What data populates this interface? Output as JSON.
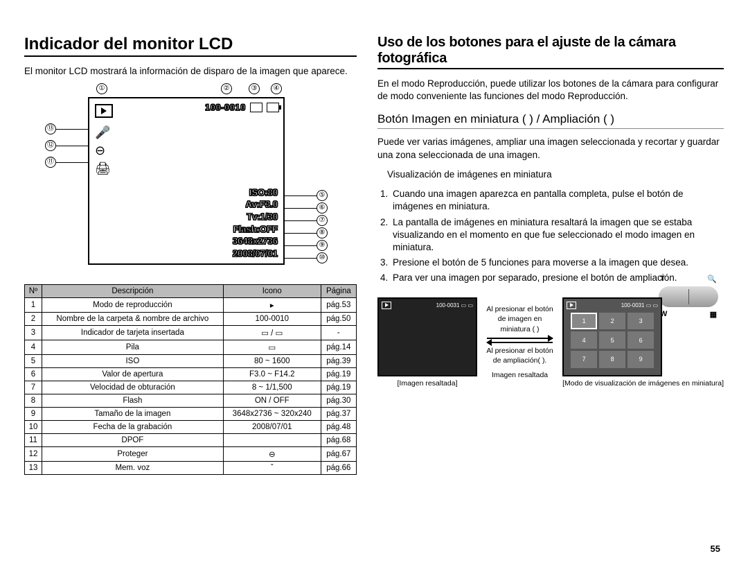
{
  "page_number": "55",
  "left": {
    "title": "Indicador del monitor LCD",
    "intro": "El monitor LCD mostrará la información de disparo de la imagen que aparece.",
    "lcd": {
      "file_label": "100-0010",
      "info_lines": [
        "ISO:80",
        "Av:F3.0",
        "Tv:1/30",
        "Flash:OFF",
        "3648x2736",
        "2008/07/01"
      ]
    },
    "callouts_top": [
      "①",
      "②",
      "③",
      "④"
    ],
    "callouts_right": [
      "⑤",
      "⑥",
      "⑦",
      "⑧",
      "⑨",
      "⑩"
    ],
    "callouts_left": [
      "⑬",
      "⑫",
      "⑪"
    ],
    "table": {
      "headers": [
        "Nº",
        "Descripción",
        "Icono",
        "Página"
      ],
      "rows": [
        [
          "1",
          "Modo de reproducción",
          "▸",
          "pág.53"
        ],
        [
          "2",
          "Nombre de la carpeta & nombre de archivo",
          "100-0010",
          "pág.50"
        ],
        [
          "3",
          "Indicador de tarjeta insertada",
          "▭ / ▭",
          "-"
        ],
        [
          "4",
          "Pila",
          "▭",
          "pág.14"
        ],
        [
          "5",
          "ISO",
          "80 ~ 1600",
          "pág.39"
        ],
        [
          "6",
          "Valor de apertura",
          "F3.0 ~ F14.2",
          "pág.19"
        ],
        [
          "7",
          "Velocidad de obturación",
          "8 ~ 1/1,500",
          "pág.19"
        ],
        [
          "8",
          "Flash",
          "ON / OFF",
          "pág.30"
        ],
        [
          "9",
          "Tamaño de la imagen",
          "3648x2736 ~ 320x240",
          "pág.37"
        ],
        [
          "10",
          "Fecha de la grabación",
          "2008/07/01",
          "pág.48"
        ],
        [
          "11",
          "DPOF",
          "",
          "pág.68"
        ],
        [
          "12",
          "Proteger",
          "⊖",
          "pág.67"
        ],
        [
          "13",
          "Mem. voz",
          "ˇ",
          "pág.66"
        ]
      ]
    }
  },
  "right": {
    "title": "Uso de los botones para el ajuste de la cámara fotográfica",
    "intro": "En el modo Reproducción, puede utilizar los botones de la cámara para configurar de modo conveniente las funciones del modo Reproducción.",
    "subhead": "Botón Imagen en miniatura (    ) / Ampliación (    )",
    "p1": "Puede ver varias imágenes, ampliar una imagen seleccionada y recortar y guardar una zona seleccionada de una imagen.",
    "section_label": "Visualización de imágenes en miniatura",
    "steps": [
      "Cuando una imagen aparezca en pantalla completa, pulse el botón de imágenes en miniatura.",
      "La pantalla de imágenes en miniatura resaltará la imagen que se estaba visualizando en el momento en que fue seleccionado el modo imagen en miniatura.",
      "Presione el botón de 5 funciones para moverse a la imagen que desea.",
      "Para ver una imagen por separado, presione el botón de ampliación."
    ],
    "zoom": {
      "t": "T",
      "w": "W",
      "mag": "🔍",
      "grid": "▦"
    },
    "diagram": {
      "hdr_label": "100-0031",
      "arrow_top": "Al presionar el botón de imagen en miniatura (    )",
      "arrow_bottom": "Al presionar el botón de ampliación(    ).",
      "highlight": "Imagen resaltada",
      "caption_left": "[Imagen resaltada]",
      "caption_right": "[Modo de visualización de imágenes en miniatura]",
      "cells": [
        "1",
        "2",
        "3",
        "4",
        "5",
        "6",
        "7",
        "8",
        "9"
      ]
    }
  }
}
